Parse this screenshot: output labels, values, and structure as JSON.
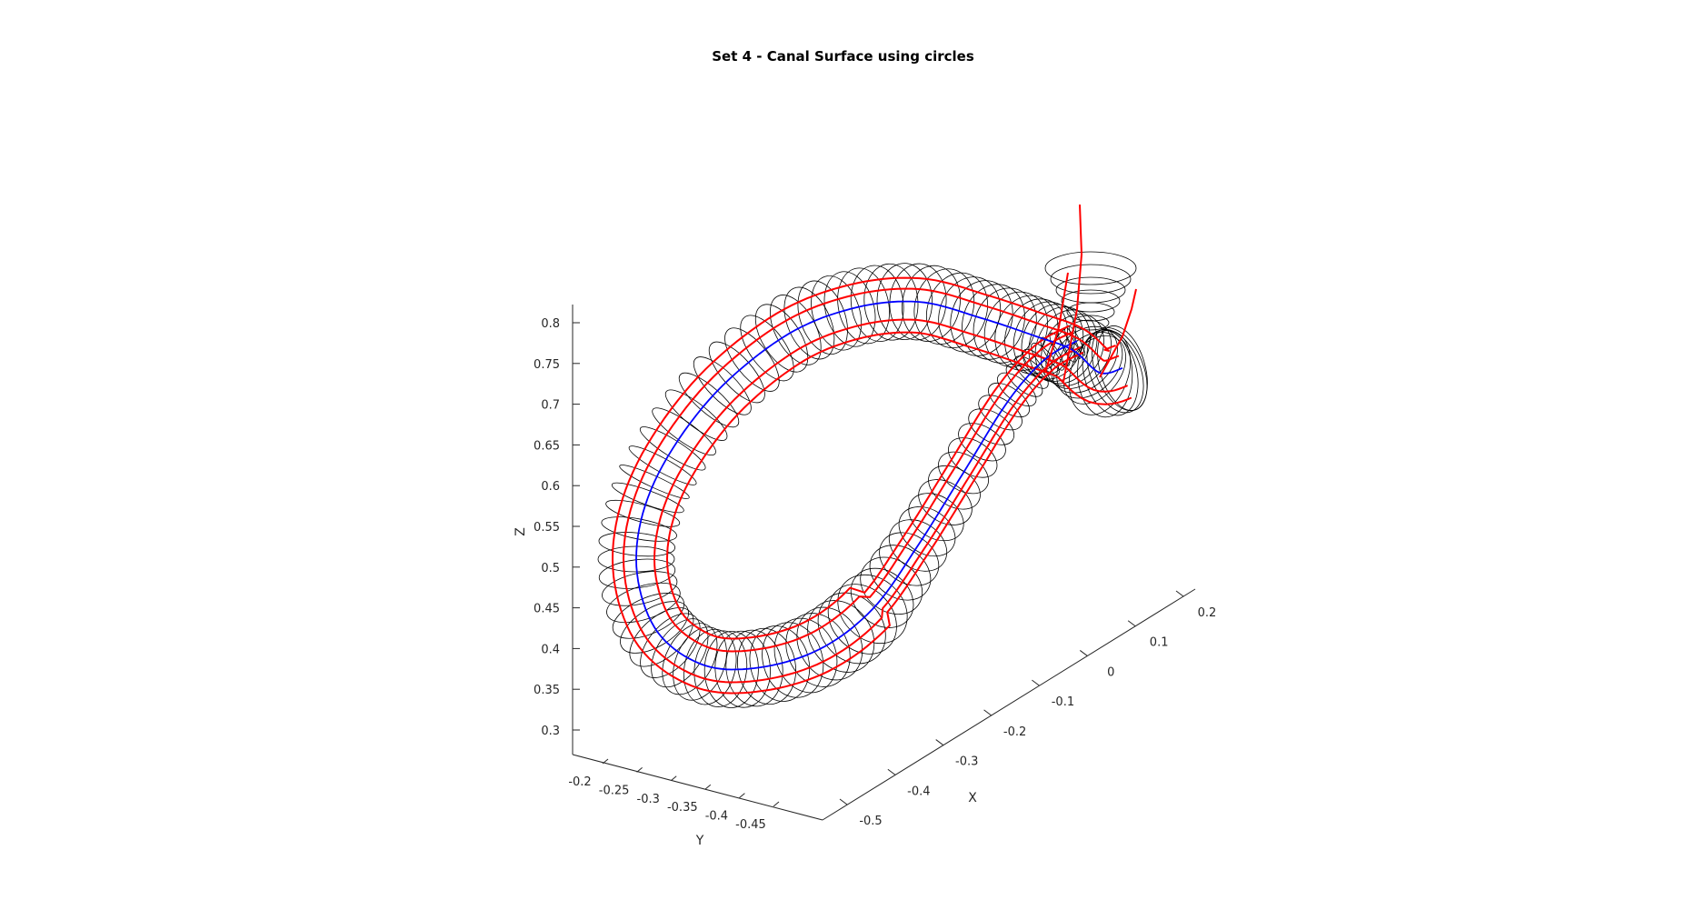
{
  "chart_data": {
    "type": "line3d",
    "title": "Set 4 - Canal Surface using circles",
    "xlabel": "X",
    "ylabel": "Y",
    "zlabel": "Z",
    "x_ticks": [
      "-0.5",
      "-0.4",
      "-0.3",
      "-0.2",
      "-0.1",
      "0",
      "0.1",
      "0.2"
    ],
    "y_ticks": [
      "-0.2",
      "-0.25",
      "-0.3",
      "-0.35",
      "-0.4",
      "-0.45"
    ],
    "z_ticks": [
      "0.3",
      "0.35",
      "0.4",
      "0.45",
      "0.5",
      "0.55",
      "0.6",
      "0.65",
      "0.7",
      "0.75",
      "0.8"
    ],
    "xlim": [
      -0.55,
      0.23
    ],
    "ylim": [
      -0.2,
      -0.47
    ],
    "zlim": [
      0.29,
      0.82
    ],
    "grid": false,
    "legend": "none",
    "series_colors": {
      "spine_curve": "#0000ff",
      "boundary_curves": "#ff0000",
      "circles": "#000000"
    }
  }
}
